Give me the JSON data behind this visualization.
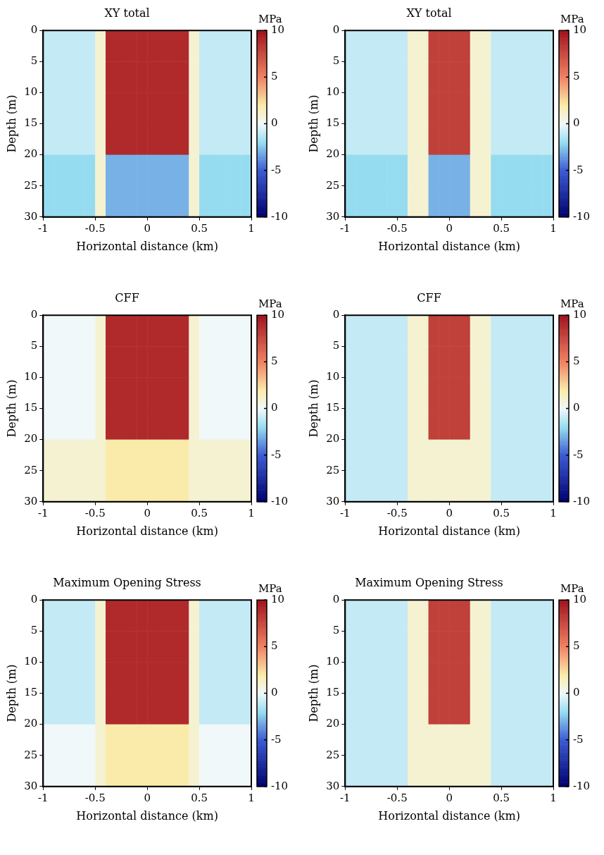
{
  "chart_data": [
    {
      "type": "heatmap",
      "title": "XY total",
      "xlabel": "Horizontal distance (km)",
      "ylabel": "Depth (m)",
      "clabel": "MPa",
      "x": [
        -0.95,
        -0.85,
        -0.75,
        -0.65,
        -0.55,
        -0.45,
        -0.35,
        -0.25,
        -0.15,
        -0.05,
        0.05,
        0.15,
        0.25,
        0.35,
        0.45,
        0.55,
        0.65,
        0.75,
        0.85,
        0.95
      ],
      "y": [
        2.5,
        7.5,
        12.5,
        17.5,
        22.5,
        27.5
      ],
      "xlim": [
        -1,
        1
      ],
      "xticks": [
        -1,
        -0.5,
        0,
        0.5,
        1
      ],
      "ylim": [
        30,
        0
      ],
      "yticks": [
        0,
        5,
        10,
        15,
        20,
        25,
        30
      ],
      "clim": [
        -10,
        10
      ],
      "cticks": [
        -10,
        -5,
        0,
        5,
        10
      ],
      "grid": false,
      "cells": [
        [
          -1,
          -1,
          -1,
          -1,
          -1,
          1,
          9,
          9,
          9,
          9,
          9,
          9,
          9,
          9,
          1,
          -1,
          -1,
          -1,
          -1,
          -1
        ],
        [
          -1,
          -1,
          -1,
          -1,
          -1,
          1,
          9,
          9,
          9,
          9,
          9,
          9,
          9,
          9,
          1,
          -1,
          -1,
          -1,
          -1,
          -1
        ],
        [
          -1,
          -1,
          -1,
          -1,
          -1,
          1,
          9,
          9,
          9,
          9,
          9,
          9,
          9,
          9,
          1,
          -1,
          -1,
          -1,
          -1,
          -1
        ],
        [
          -1,
          -1,
          -1,
          -1,
          -1,
          1,
          9,
          9,
          9,
          9,
          9,
          9,
          9,
          9,
          1,
          -1,
          -1,
          -1,
          -1,
          -1
        ],
        [
          -2,
          -2,
          -2,
          -2,
          -2,
          1,
          -3,
          -3,
          -3,
          -3,
          -3,
          -3,
          -3,
          -3,
          1,
          -2,
          -2,
          -2,
          -2,
          -2
        ],
        [
          -2,
          -2,
          -2,
          -2,
          -2,
          1,
          -3,
          -3,
          -3,
          -3,
          -3,
          -3,
          -3,
          -3,
          1,
          -2,
          -2,
          -2,
          -2,
          -2
        ]
      ]
    },
    {
      "type": "heatmap",
      "title": "XY total",
      "xlabel": "Horizontal distance (km)",
      "ylabel": "Depth (m)",
      "clabel": "MPa",
      "x": [
        -0.95,
        -0.85,
        -0.75,
        -0.65,
        -0.55,
        -0.45,
        -0.35,
        -0.25,
        -0.15,
        -0.05,
        0.05,
        0.15,
        0.25,
        0.35,
        0.45,
        0.55,
        0.65,
        0.75,
        0.85,
        0.95
      ],
      "y": [
        2.5,
        7.5,
        12.5,
        17.5,
        22.5,
        27.5
      ],
      "xlim": [
        -1,
        1
      ],
      "xticks": [
        -1,
        -0.5,
        0,
        0.5,
        1
      ],
      "ylim": [
        30,
        0
      ],
      "yticks": [
        0,
        5,
        10,
        15,
        20,
        25,
        30
      ],
      "clim": [
        -10,
        10
      ],
      "cticks": [
        -10,
        -5,
        0,
        5,
        10
      ],
      "grid": false,
      "cells": [
        [
          -1,
          -1,
          -1,
          -1,
          -1,
          -1,
          1,
          1,
          8,
          8,
          8,
          8,
          1,
          1,
          -1,
          -1,
          -1,
          -1,
          -1,
          -1
        ],
        [
          -1,
          -1,
          -1,
          -1,
          -1,
          -1,
          1,
          1,
          8,
          8,
          8,
          8,
          1,
          1,
          -1,
          -1,
          -1,
          -1,
          -1,
          -1
        ],
        [
          -1,
          -1,
          -1,
          -1,
          -1,
          -1,
          1,
          1,
          8,
          8,
          8,
          8,
          1,
          1,
          -1,
          -1,
          -1,
          -1,
          -1,
          -1
        ],
        [
          -1,
          -1,
          -1,
          -1,
          -1,
          -1,
          1,
          1,
          8,
          8,
          8,
          8,
          1,
          1,
          -1,
          -1,
          -1,
          -1,
          -1,
          -1
        ],
        [
          -2,
          -2,
          -2,
          -2,
          -2,
          -2,
          1,
          1,
          -3,
          -3,
          -3,
          -3,
          1,
          1,
          -2,
          -2,
          -2,
          -2,
          -2,
          -2
        ],
        [
          -2,
          -2,
          -2,
          -2,
          -2,
          -2,
          1,
          1,
          -3,
          -3,
          -3,
          -3,
          1,
          1,
          -2,
          -2,
          -2,
          -2,
          -2,
          -2
        ]
      ]
    },
    {
      "type": "heatmap",
      "title": "CFF",
      "xlabel": "Horizontal distance (km)",
      "ylabel": "Depth (m)",
      "clabel": "MPa",
      "x": [
        -0.95,
        -0.85,
        -0.75,
        -0.65,
        -0.55,
        -0.45,
        -0.35,
        -0.25,
        -0.15,
        -0.05,
        0.05,
        0.15,
        0.25,
        0.35,
        0.45,
        0.55,
        0.65,
        0.75,
        0.85,
        0.95
      ],
      "y": [
        2.5,
        7.5,
        12.5,
        17.5,
        22.5,
        27.5
      ],
      "xlim": [
        -1,
        1
      ],
      "xticks": [
        -1,
        -0.5,
        0,
        0.5,
        1
      ],
      "ylim": [
        30,
        0
      ],
      "yticks": [
        0,
        5,
        10,
        15,
        20,
        25,
        30
      ],
      "clim": [
        -10,
        10
      ],
      "cticks": [
        -10,
        -5,
        0,
        5,
        10
      ],
      "grid": false,
      "cells": [
        [
          0,
          0,
          0,
          0,
          0,
          1,
          9,
          9,
          9,
          9,
          9,
          9,
          9,
          9,
          1,
          0,
          0,
          0,
          0,
          0
        ],
        [
          0,
          0,
          0,
          0,
          0,
          1,
          9,
          9,
          9,
          9,
          9,
          9,
          9,
          9,
          1,
          0,
          0,
          0,
          0,
          0
        ],
        [
          0,
          0,
          0,
          0,
          0,
          1,
          9,
          9,
          9,
          9,
          9,
          9,
          9,
          9,
          1,
          0,
          0,
          0,
          0,
          0
        ],
        [
          0,
          0,
          0,
          0,
          0,
          1,
          9,
          9,
          9,
          9,
          9,
          9,
          9,
          9,
          1,
          0,
          0,
          0,
          0,
          0
        ],
        [
          1,
          1,
          1,
          1,
          1,
          1,
          2,
          2,
          2,
          2,
          2,
          2,
          2,
          2,
          1,
          1,
          1,
          1,
          1,
          1
        ],
        [
          1,
          1,
          1,
          1,
          1,
          1,
          2,
          2,
          2,
          2,
          2,
          2,
          2,
          2,
          1,
          1,
          1,
          1,
          1,
          1
        ]
      ]
    },
    {
      "type": "heatmap",
      "title": "CFF",
      "xlabel": "Horizontal distance (km)",
      "ylabel": "Depth (m)",
      "clabel": "MPa",
      "x": [
        -0.95,
        -0.85,
        -0.75,
        -0.65,
        -0.55,
        -0.45,
        -0.35,
        -0.25,
        -0.15,
        -0.05,
        0.05,
        0.15,
        0.25,
        0.35,
        0.45,
        0.55,
        0.65,
        0.75,
        0.85,
        0.95
      ],
      "y": [
        2.5,
        7.5,
        12.5,
        17.5,
        22.5,
        27.5
      ],
      "xlim": [
        -1,
        1
      ],
      "xticks": [
        -1,
        -0.5,
        0,
        0.5,
        1
      ],
      "ylim": [
        30,
        0
      ],
      "yticks": [
        0,
        5,
        10,
        15,
        20,
        25,
        30
      ],
      "clim": [
        -10,
        10
      ],
      "cticks": [
        -10,
        -5,
        0,
        5,
        10
      ],
      "grid": false,
      "cells": [
        [
          -1,
          -1,
          -1,
          -1,
          -1,
          -1,
          1,
          1,
          8,
          8,
          8,
          8,
          1,
          1,
          -1,
          -1,
          -1,
          -1,
          -1,
          -1
        ],
        [
          -1,
          -1,
          -1,
          -1,
          -1,
          -1,
          1,
          1,
          8,
          8,
          8,
          8,
          1,
          1,
          -1,
          -1,
          -1,
          -1,
          -1,
          -1
        ],
        [
          -1,
          -1,
          -1,
          -1,
          -1,
          -1,
          1,
          1,
          8,
          8,
          8,
          8,
          1,
          1,
          -1,
          -1,
          -1,
          -1,
          -1,
          -1
        ],
        [
          -1,
          -1,
          -1,
          -1,
          -1,
          -1,
          1,
          1,
          8,
          8,
          8,
          8,
          1,
          1,
          -1,
          -1,
          -1,
          -1,
          -1,
          -1
        ],
        [
          -1,
          -1,
          -1,
          -1,
          -1,
          -1,
          1,
          1,
          1,
          1,
          1,
          1,
          1,
          1,
          -1,
          -1,
          -1,
          -1,
          -1,
          -1
        ],
        [
          -1,
          -1,
          -1,
          -1,
          -1,
          -1,
          1,
          1,
          1,
          1,
          1,
          1,
          1,
          1,
          -1,
          -1,
          -1,
          -1,
          -1,
          -1
        ]
      ]
    },
    {
      "type": "heatmap",
      "title": "Maximum Opening Stress",
      "xlabel": "Horizontal distance (km)",
      "ylabel": "Depth (m)",
      "clabel": "MPa",
      "x": [
        -0.95,
        -0.85,
        -0.75,
        -0.65,
        -0.55,
        -0.45,
        -0.35,
        -0.25,
        -0.15,
        -0.05,
        0.05,
        0.15,
        0.25,
        0.35,
        0.45,
        0.55,
        0.65,
        0.75,
        0.85,
        0.95
      ],
      "y": [
        2.5,
        7.5,
        12.5,
        17.5,
        22.5,
        27.5
      ],
      "xlim": [
        -1,
        1
      ],
      "xticks": [
        -1,
        -0.5,
        0,
        0.5,
        1
      ],
      "ylim": [
        30,
        0
      ],
      "yticks": [
        0,
        5,
        10,
        15,
        20,
        25,
        30
      ],
      "clim": [
        -10,
        10
      ],
      "cticks": [
        -10,
        -5,
        0,
        5,
        10
      ],
      "grid": false,
      "cells": [
        [
          -1,
          -1,
          -1,
          -1,
          -1,
          1,
          9,
          9,
          9,
          9,
          9,
          9,
          9,
          9,
          1,
          -1,
          -1,
          -1,
          -1,
          -1
        ],
        [
          -1,
          -1,
          -1,
          -1,
          -1,
          1,
          9,
          9,
          9,
          9,
          9,
          9,
          9,
          9,
          1,
          -1,
          -1,
          -1,
          -1,
          -1
        ],
        [
          -1,
          -1,
          -1,
          -1,
          -1,
          1,
          9,
          9,
          9,
          9,
          9,
          9,
          9,
          9,
          1,
          -1,
          -1,
          -1,
          -1,
          -1
        ],
        [
          -1,
          -1,
          -1,
          -1,
          -1,
          1,
          9,
          9,
          9,
          9,
          9,
          9,
          9,
          9,
          1,
          -1,
          -1,
          -1,
          -1,
          -1
        ],
        [
          0,
          0,
          0,
          0,
          0,
          1,
          2,
          2,
          2,
          2,
          2,
          2,
          2,
          2,
          1,
          0,
          0,
          0,
          0,
          0
        ],
        [
          0,
          0,
          0,
          0,
          0,
          1,
          2,
          2,
          2,
          2,
          2,
          2,
          2,
          2,
          1,
          0,
          0,
          0,
          0,
          0
        ]
      ]
    },
    {
      "type": "heatmap",
      "title": "Maximum Opening Stress",
      "xlabel": "Horizontal distance (km)",
      "ylabel": "Depth (m)",
      "clabel": "MPa",
      "x": [
        -0.95,
        -0.85,
        -0.75,
        -0.65,
        -0.55,
        -0.45,
        -0.35,
        -0.25,
        -0.15,
        -0.05,
        0.05,
        0.15,
        0.25,
        0.35,
        0.45,
        0.55,
        0.65,
        0.75,
        0.85,
        0.95
      ],
      "y": [
        2.5,
        7.5,
        12.5,
        17.5,
        22.5,
        27.5
      ],
      "xlim": [
        -1,
        1
      ],
      "xticks": [
        -1,
        -0.5,
        0,
        0.5,
        1
      ],
      "ylim": [
        30,
        0
      ],
      "yticks": [
        0,
        5,
        10,
        15,
        20,
        25,
        30
      ],
      "clim": [
        -10,
        10
      ],
      "cticks": [
        -10,
        -5,
        0,
        5,
        10
      ],
      "grid": false,
      "cells": [
        [
          -1,
          -1,
          -1,
          -1,
          -1,
          -1,
          1,
          1,
          8,
          8,
          8,
          8,
          1,
          1,
          -1,
          -1,
          -1,
          -1,
          -1,
          -1
        ],
        [
          -1,
          -1,
          -1,
          -1,
          -1,
          -1,
          1,
          1,
          8,
          8,
          8,
          8,
          1,
          1,
          -1,
          -1,
          -1,
          -1,
          -1,
          -1
        ],
        [
          -1,
          -1,
          -1,
          -1,
          -1,
          -1,
          1,
          1,
          8,
          8,
          8,
          8,
          1,
          1,
          -1,
          -1,
          -1,
          -1,
          -1,
          -1
        ],
        [
          -1,
          -1,
          -1,
          -1,
          -1,
          -1,
          1,
          1,
          8,
          8,
          8,
          8,
          1,
          1,
          -1,
          -1,
          -1,
          -1,
          -1,
          -1
        ],
        [
          -1,
          -1,
          -1,
          -1,
          -1,
          -1,
          1,
          1,
          1,
          1,
          1,
          1,
          1,
          1,
          -1,
          -1,
          -1,
          -1,
          -1,
          -1
        ],
        [
          -1,
          -1,
          -1,
          -1,
          -1,
          -1,
          1,
          1,
          1,
          1,
          1,
          1,
          1,
          1,
          -1,
          -1,
          -1,
          -1,
          -1,
          -1
        ]
      ]
    }
  ]
}
